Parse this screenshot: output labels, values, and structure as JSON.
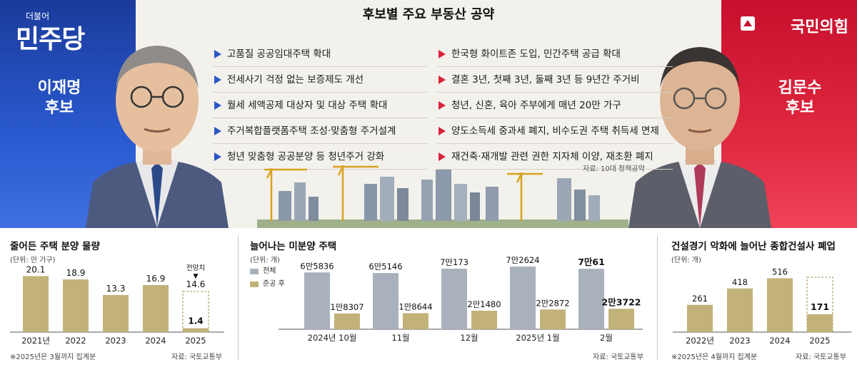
{
  "header": {
    "title": "후보별 주요 부동산 공약",
    "source": "자료: 10대 정책공약"
  },
  "left": {
    "party_small": "더불어",
    "party": "민주당",
    "candidate_name": "이재명",
    "candidate_role": "후보",
    "color": "#1b3b9b",
    "pledges": [
      "고품질 공공임대주택 확대",
      "전세사기 걱정 없는 보증제도 개선",
      "월세 세액공제 대상자 및 대상 주택 확대",
      "주거복합플랫폼주택 조성·맞춤형 주거설계",
      "청년 맞춤형 공공분양 등 청년주거 강화"
    ]
  },
  "right": {
    "party": "국민의힘",
    "candidate_name": "김문수",
    "candidate_role": "후보",
    "color": "#c8102e",
    "pledges": [
      "한국형 화이트존 도입, 민간주택 공급 확대",
      "결혼 3년, 첫째 3년, 둘째 3년 등 9년간 주거비",
      "청년, 신혼, 육아 주부에게 매년 20만 가구",
      "양도소득세 중과세 폐지, 비수도권 주택 취득세 면제",
      "재건축·재개발 관련 권한 지자체 이양, 재초환 폐지"
    ]
  },
  "charts": {
    "supply": {
      "title": "줄어든 주택 분양 물량",
      "unit": "(단위: 만 가구)",
      "note": "※2025년은 3월까지 집계분",
      "source": "자료: 국토교통부",
      "forecast_label": "전망치",
      "forecast_arrow": "▼"
    },
    "unsold": {
      "title": "늘어나는 미분양 주택",
      "unit": "(단위: 개)",
      "source": "자료: 국토교통부",
      "legend_total": "전체",
      "legend_after": "준공 후"
    },
    "closures": {
      "title": "건설경기 악화에 늘어난 종합건설사 폐업",
      "unit": "(단위: 개)",
      "note": "※2025년은 4월까지 집계분",
      "source": "자료: 국토교통부"
    }
  },
  "chart_data": [
    {
      "type": "bar",
      "title": "줄어든 주택 분양 물량",
      "ylabel": "만 가구",
      "categories": [
        "2021년",
        "2022",
        "2023",
        "2024",
        "2025"
      ],
      "values": [
        20.1,
        18.9,
        13.3,
        16.9,
        1.4
      ],
      "value_labels": [
        "20.1",
        "18.9",
        "13.3",
        "16.9",
        "1.4"
      ],
      "forecast": {
        "category": "2025",
        "value": 14.6,
        "label": "14.6"
      },
      "ylim": [
        0,
        22
      ],
      "colors": {
        "bar": "#c2b27a",
        "forecast_outline": "#b0a06a"
      }
    },
    {
      "type": "bar",
      "title": "늘어나는 미분양 주택",
      "ylabel": "개",
      "categories": [
        "2024년 10월",
        "11월",
        "12월",
        "2025년 1월",
        "2월"
      ],
      "series": [
        {
          "name": "전체",
          "values": [
            65836,
            65146,
            70173,
            72624,
            70061
          ],
          "labels": [
            "6만5836",
            "6만5146",
            "7만173",
            "7만2624",
            "7만61"
          ],
          "color": "#a9b1bd"
        },
        {
          "name": "준공 후",
          "values": [
            18307,
            18644,
            21480,
            22872,
            23722
          ],
          "labels": [
            "1만8307",
            "1만8644",
            "2만1480",
            "2만2872",
            "2만3722"
          ],
          "color": "#c2b27a"
        }
      ],
      "ylim": [
        0,
        76000
      ],
      "highlight_last": true
    },
    {
      "type": "bar",
      "title": "건설경기 악화에 늘어난 종합건설사 폐업",
      "ylabel": "개",
      "categories": [
        "2022년",
        "2023",
        "2024",
        "2025"
      ],
      "values": [
        261,
        418,
        516,
        171
      ],
      "value_labels": [
        "261",
        "418",
        "516",
        "171"
      ],
      "projection_outline_for_last": true,
      "ylim": [
        0,
        560
      ],
      "colors": {
        "bar": "#c2b27a",
        "outline": "#b0a06a"
      }
    }
  ]
}
